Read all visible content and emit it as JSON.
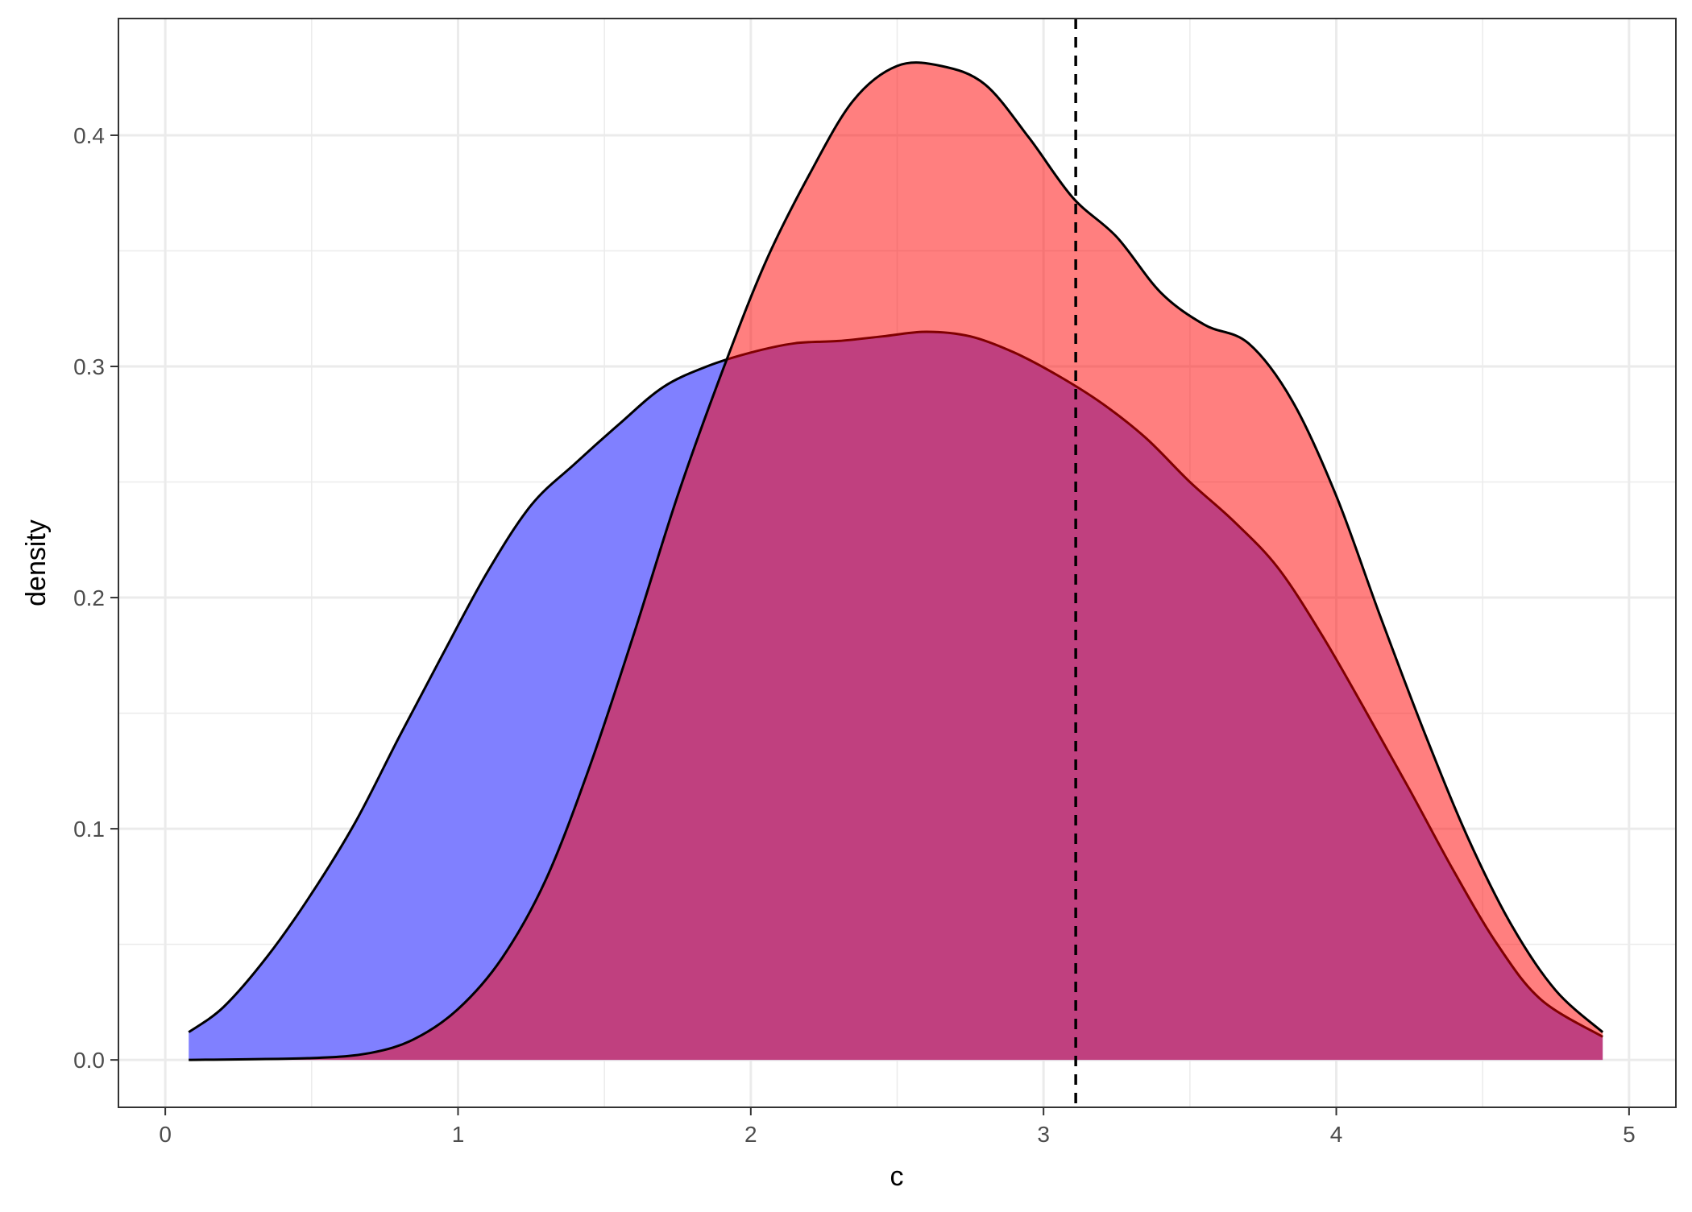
{
  "chart_data": {
    "type": "area",
    "title": "",
    "xlabel": "c",
    "ylabel": "density",
    "xlim": [
      -0.16,
      5.16
    ],
    "ylim": [
      -0.0205,
      0.4505
    ],
    "xticks": [
      0,
      1,
      2,
      3,
      4,
      5
    ],
    "xtick_labels": [
      "0",
      "1",
      "2",
      "3",
      "4",
      "5"
    ],
    "yticks": [
      0.0,
      0.1,
      0.2,
      0.3,
      0.4
    ],
    "ytick_labels": [
      "0.0",
      "0.1",
      "0.2",
      "0.3",
      "0.4"
    ],
    "grid": true,
    "legend": "none",
    "reference_line": {
      "x": 3.11,
      "style": "dashed",
      "color": "#000000"
    },
    "series": [
      {
        "fill": "#8080ff",
        "outline": "#000000",
        "points": [
          [
            0.08,
            0.012
          ],
          [
            0.2,
            0.023
          ],
          [
            0.35,
            0.045
          ],
          [
            0.5,
            0.072
          ],
          [
            0.65,
            0.103
          ],
          [
            0.8,
            0.14
          ],
          [
            0.95,
            0.176
          ],
          [
            1.1,
            0.211
          ],
          [
            1.25,
            0.24
          ],
          [
            1.4,
            0.258
          ],
          [
            1.55,
            0.275
          ],
          [
            1.7,
            0.291
          ],
          [
            1.85,
            0.3
          ],
          [
            2.0,
            0.306
          ],
          [
            2.15,
            0.31
          ],
          [
            2.3,
            0.311
          ],
          [
            2.45,
            0.313
          ],
          [
            2.6,
            0.315
          ],
          [
            2.75,
            0.313
          ],
          [
            2.9,
            0.306
          ],
          [
            3.05,
            0.296
          ],
          [
            3.2,
            0.284
          ],
          [
            3.35,
            0.269
          ],
          [
            3.5,
            0.25
          ],
          [
            3.65,
            0.233
          ],
          [
            3.8,
            0.213
          ],
          [
            3.95,
            0.184
          ],
          [
            4.1,
            0.151
          ],
          [
            4.25,
            0.117
          ],
          [
            4.4,
            0.082
          ],
          [
            4.55,
            0.05
          ],
          [
            4.7,
            0.026
          ],
          [
            4.91,
            0.01
          ]
        ]
      },
      {
        "fill": "#ff0000",
        "fill_opacity": 0.5,
        "outline": "#000000",
        "points": [
          [
            0.08,
            0.0
          ],
          [
            0.5,
            0.0008
          ],
          [
            0.7,
            0.003
          ],
          [
            0.85,
            0.009
          ],
          [
            1.0,
            0.022
          ],
          [
            1.15,
            0.044
          ],
          [
            1.3,
            0.078
          ],
          [
            1.45,
            0.127
          ],
          [
            1.6,
            0.184
          ],
          [
            1.75,
            0.244
          ],
          [
            1.9,
            0.297
          ],
          [
            2.05,
            0.345
          ],
          [
            2.2,
            0.383
          ],
          [
            2.35,
            0.415
          ],
          [
            2.5,
            0.43
          ],
          [
            2.65,
            0.43
          ],
          [
            2.8,
            0.422
          ],
          [
            2.95,
            0.399
          ],
          [
            3.1,
            0.373
          ],
          [
            3.25,
            0.356
          ],
          [
            3.4,
            0.332
          ],
          [
            3.55,
            0.318
          ],
          [
            3.7,
            0.31
          ],
          [
            3.85,
            0.285
          ],
          [
            4.0,
            0.244
          ],
          [
            4.15,
            0.192
          ],
          [
            4.3,
            0.142
          ],
          [
            4.45,
            0.096
          ],
          [
            4.6,
            0.058
          ],
          [
            4.75,
            0.03
          ],
          [
            4.91,
            0.012
          ]
        ]
      }
    ]
  }
}
